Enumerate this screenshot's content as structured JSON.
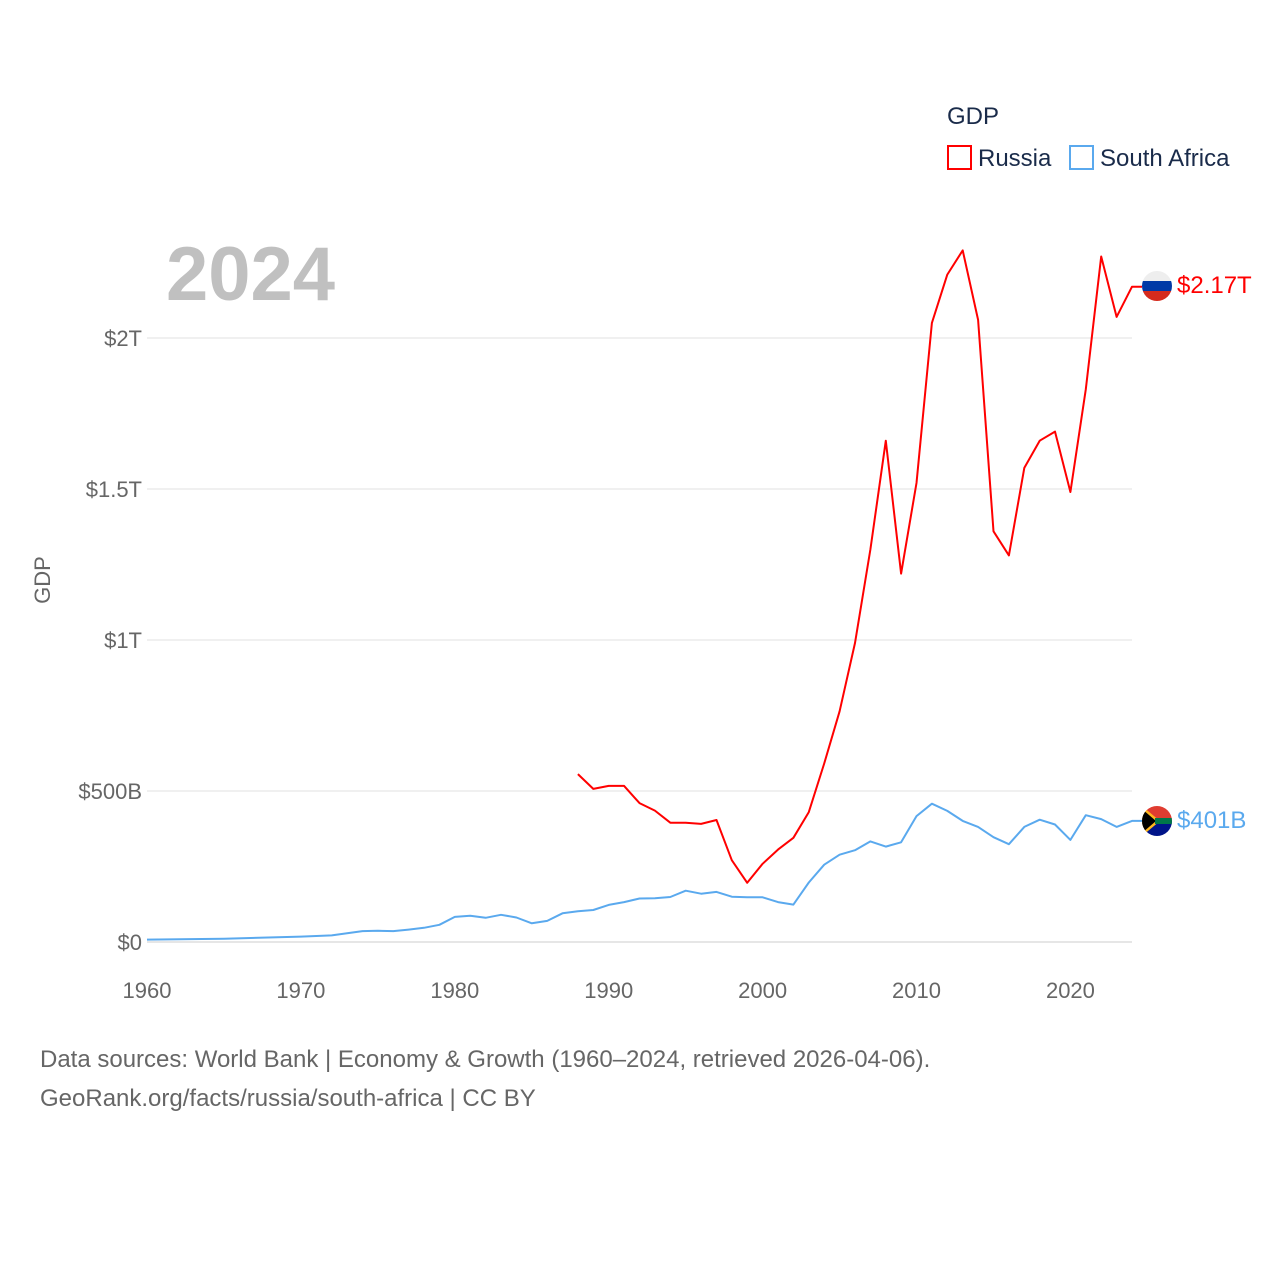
{
  "chart_data": {
    "type": "line",
    "title": "",
    "year_label": "2024",
    "xlabel": "",
    "ylabel": "GDP",
    "xlim": [
      1960,
      2024
    ],
    "ylim": [
      0,
      2300
    ],
    "y_unit": "billions USD",
    "grid": true,
    "x_ticks": [
      1960,
      1970,
      1980,
      1990,
      2000,
      2010,
      2020
    ],
    "x_tick_labels": [
      "1960",
      "1970",
      "1980",
      "1990",
      "2000",
      "2010",
      "2020"
    ],
    "y_ticks": [
      0,
      500,
      1000,
      1500,
      2000
    ],
    "y_tick_labels": [
      "$0",
      "$500B",
      "$1T",
      "$1.5T",
      "$2T"
    ],
    "legend": {
      "title": "GDP",
      "placement": "top-right"
    },
    "series": [
      {
        "name": "Russia",
        "color": "#ff0000",
        "end_label": "$2.17T",
        "flag": "russia-flag",
        "x": [
          1988,
          1989,
          1990,
          1991,
          1992,
          1993,
          1994,
          1995,
          1996,
          1997,
          1998,
          1999,
          2000,
          2001,
          2002,
          2003,
          2004,
          2005,
          2006,
          2007,
          2008,
          2009,
          2010,
          2011,
          2012,
          2013,
          2014,
          2015,
          2016,
          2017,
          2018,
          2019,
          2020,
          2021,
          2022,
          2023,
          2024
        ],
        "values": [
          556,
          507,
          517,
          517,
          460,
          435,
          395,
          395,
          391,
          404,
          271,
          196,
          259,
          306,
          345,
          430,
          591,
          764,
          990,
          1300,
          1660,
          1220,
          1520,
          2050,
          2210,
          2290,
          2060,
          1360,
          1280,
          1570,
          1660,
          1690,
          1490,
          1830,
          2270,
          2070,
          2170
        ]
      },
      {
        "name": "South Africa",
        "color": "#5aa9ee",
        "end_label": "$401B",
        "flag": "south-africa-flag",
        "x": [
          1960,
          1965,
          1970,
          1972,
          1974,
          1975,
          1976,
          1977,
          1978,
          1979,
          1980,
          1981,
          1982,
          1983,
          1984,
          1985,
          1986,
          1987,
          1988,
          1989,
          1990,
          1991,
          1992,
          1993,
          1994,
          1995,
          1996,
          1997,
          1998,
          1999,
          2000,
          2001,
          2002,
          2003,
          2004,
          2005,
          2006,
          2007,
          2008,
          2009,
          2010,
          2011,
          2012,
          2013,
          2014,
          2015,
          2016,
          2017,
          2018,
          2019,
          2020,
          2021,
          2022,
          2023,
          2024
        ],
        "values": [
          8,
          11,
          18,
          22,
          36,
          37,
          36,
          41,
          47,
          57,
          83,
          87,
          80,
          90,
          81,
          62,
          70,
          95,
          102,
          106,
          123,
          132,
          144,
          145,
          149,
          170,
          160,
          166,
          150,
          148,
          148,
          132,
          124,
          197,
          256,
          289,
          304,
          333,
          316,
          330,
          417,
          458,
          434,
          401,
          381,
          347,
          324,
          381,
          405,
          389,
          338,
          420,
          407,
          381,
          401
        ]
      }
    ]
  },
  "footer": {
    "line1": "Data sources: World Bank | Economy & Growth (1960–2024, retrieved 2026-04-06).",
    "line2": "GeoRank.org/facts/russia/south-africa | CC BY"
  }
}
